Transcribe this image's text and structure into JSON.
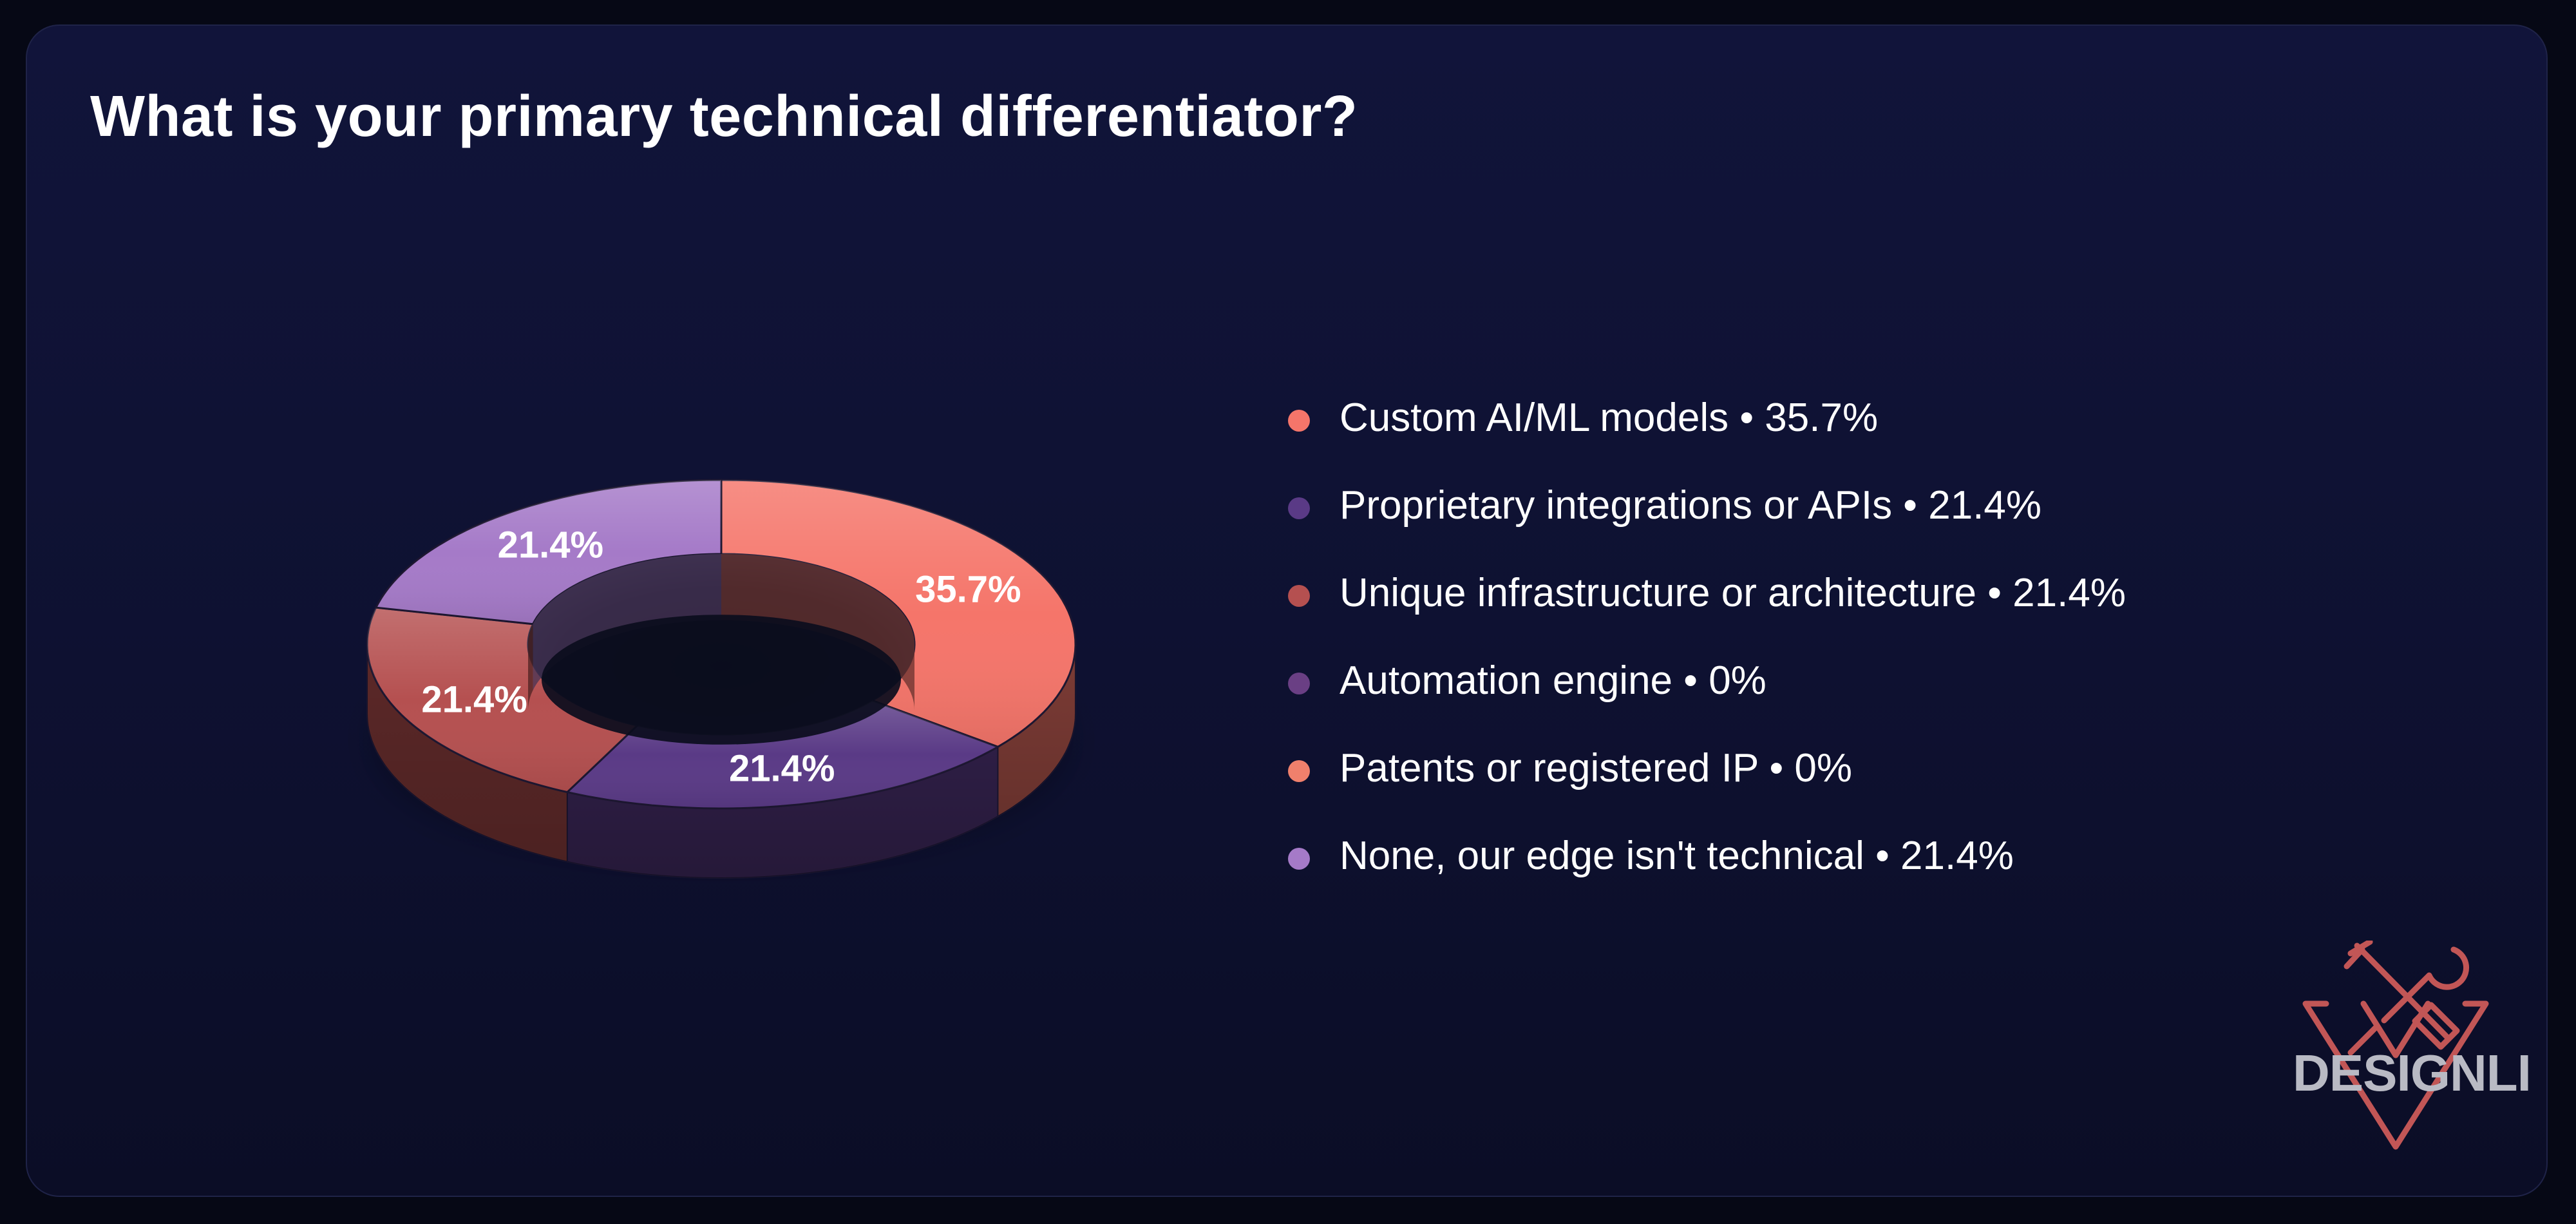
{
  "title": "What is your primary technical differentiator?",
  "chart_data": {
    "type": "pie",
    "style": "3d-donut",
    "title": "What is your primary technical differentiator?",
    "legend_position": "right",
    "slices": [
      {
        "label": "Custom AI/ML models",
        "value": 35.7,
        "display": "35.7%",
        "legend": "Custom AI/ML models • 35.7%",
        "color": "#f5756a"
      },
      {
        "label": "Proprietary integrations or APIs",
        "value": 21.4,
        "display": "21.4%",
        "legend": "Proprietary integrations or APIs • 21.4%",
        "color": "#5a3a86"
      },
      {
        "label": "Unique infrastructure or architecture",
        "value": 21.4,
        "display": "21.4%",
        "legend": "Unique infrastructure or architecture • 21.4%",
        "color": "#b55050"
      },
      {
        "label": "Automation engine",
        "value": 0,
        "display": "0%",
        "legend": "Automation engine • 0%",
        "color": "#6a3f84"
      },
      {
        "label": "Patents or registered IP",
        "value": 0,
        "display": "0%",
        "legend": "Patents or registered IP • 0%",
        "color": "#f0806c"
      },
      {
        "label": "None, our edge isn't technical",
        "value": 21.4,
        "display": "21.4%",
        "legend": "None, our edge isn't technical • 21.4%",
        "color": "#a57ac8"
      }
    ]
  },
  "logo": {
    "text": "DESIGNLI",
    "color": "#c25656"
  }
}
